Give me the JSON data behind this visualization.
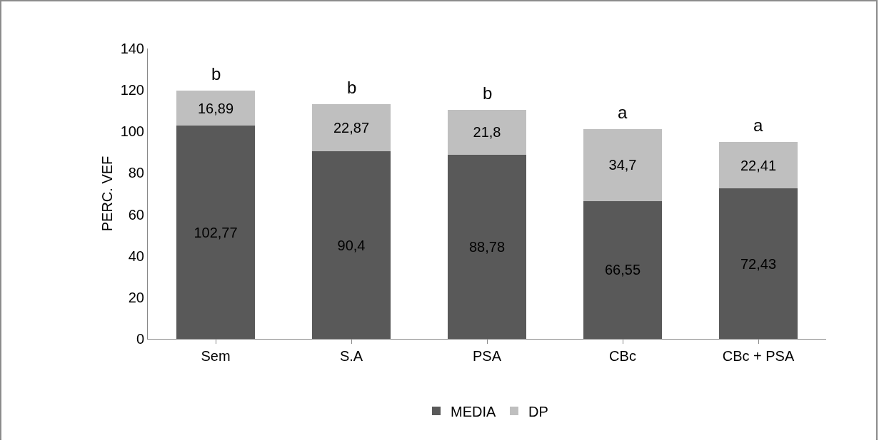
{
  "chart_data": {
    "type": "bar",
    "stacked": true,
    "ylabel": "PERC. VEF",
    "categories": [
      "Sem",
      "S.A",
      "PSA",
      "CBc",
      "CBc + PSA"
    ],
    "series": [
      {
        "name": "MEDIA",
        "color": "#595959",
        "values": [
          102.77,
          90.4,
          88.78,
          66.55,
          72.43
        ],
        "value_labels": [
          "102,77",
          "90,4",
          "88,78",
          "66,55",
          "72,43"
        ]
      },
      {
        "name": "DP",
        "color": "#bfbfbf",
        "values": [
          16.89,
          22.87,
          21.8,
          34.7,
          22.41
        ],
        "value_labels": [
          "16,89",
          "22,87",
          "21,8",
          "34,7",
          "22,41"
        ]
      }
    ],
    "ylim": [
      0,
      140
    ],
    "yticks": [
      0,
      20,
      40,
      60,
      80,
      100,
      120,
      140
    ],
    "grid": false,
    "legend": "bottom",
    "annotations": [
      {
        "text": "b",
        "x": "Sem",
        "y": 119.66
      },
      {
        "text": "b",
        "x": "S.A",
        "y": 113.27
      },
      {
        "text": "b",
        "x": "PSA",
        "y": 110.58
      },
      {
        "text": "a",
        "x": "CBc",
        "y": 101.25
      },
      {
        "text": "a",
        "x": "CBc + PSA",
        "y": 94.84
      }
    ]
  }
}
